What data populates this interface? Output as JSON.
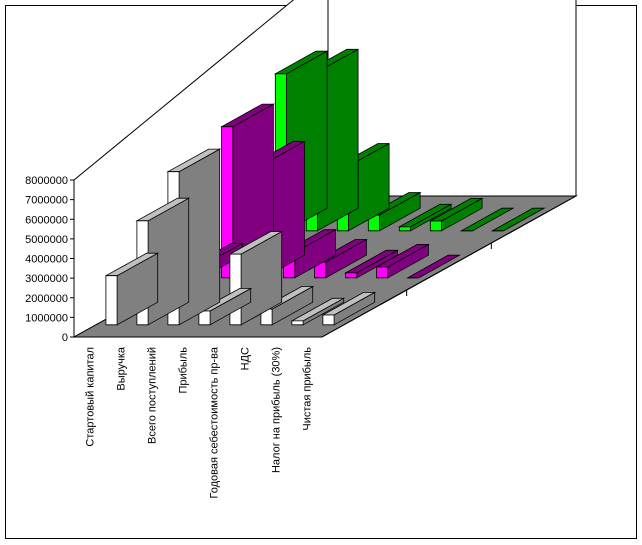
{
  "chart_data": {
    "type": "bar",
    "subtype": "3d-clustered-bars",
    "categories": [
      "Стартовый капитал",
      "Выручка",
      "Всего поступлений",
      "Прибыль",
      "Годовая себестоимость пр-ва",
      "НДС",
      "Налог на прибыль (30%)",
      "Чистая прибыль"
    ],
    "series": [
      {
        "color": "#c0c0c0",
        "face": "#ffffff",
        "side": "#808080",
        "values": [
          2500000,
          5300000,
          7800000,
          700000,
          3600000,
          800000,
          200000,
          500000
        ]
      },
      {
        "color": "#800080",
        "face": "#ff00ff",
        "side": "#800080",
        "values": [
          600000,
          7700000,
          5800000,
          1300000,
          800000,
          250000,
          550000,
          0
        ]
      },
      {
        "color": "#008000",
        "face": "#00ff00",
        "side": "#008000",
        "values": [
          8000000,
          8100000,
          3300000,
          800000,
          200000,
          500000,
          0,
          0
        ]
      }
    ],
    "yticks": [
      "8000000",
      "7000000",
      "6000000",
      "5000000",
      "4000000",
      "3000000",
      "2000000",
      "1000000",
      "0"
    ],
    "ylim": [
      0,
      8000000
    ],
    "grid": false,
    "legend": "none"
  }
}
